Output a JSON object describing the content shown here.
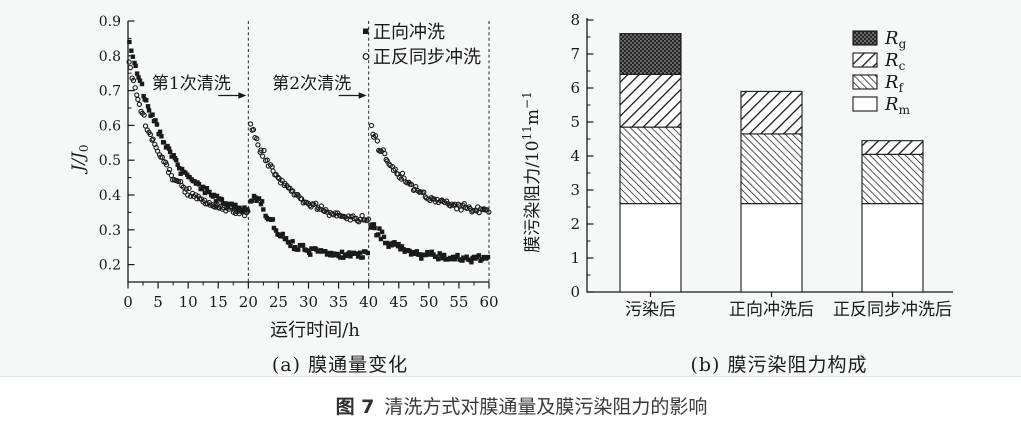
{
  "figure": {
    "caption_prefix": "图 7",
    "caption_text": "清洗方式对膜通量及膜污染阻力的影响"
  },
  "colors": {
    "background": "#f6f7f7",
    "page": "#ffffff",
    "ink": "#1a1a1a",
    "divider": "#dfe6e3"
  },
  "chart_data": [
    {
      "id": "flux",
      "type": "scatter",
      "title": "(a) 膜通量变化",
      "xlabel": "运行时间/h",
      "ylabel": {
        "main": "J/J",
        "sub": "0"
      },
      "xlim": [
        0,
        60
      ],
      "ylim": [
        0.15,
        0.9
      ],
      "xticks": [
        0,
        5,
        10,
        15,
        20,
        25,
        30,
        35,
        40,
        45,
        50,
        55,
        60
      ],
      "x_minor_step": 2.5,
      "yticks": [
        "0.2",
        "0.3",
        "0.4",
        "0.5",
        "0.6",
        "0.7",
        "0.8",
        "0.9"
      ],
      "y_minor_step": 0.05,
      "grid": false,
      "cleaning_boundaries_h": [
        20,
        40,
        60
      ],
      "annotations": [
        {
          "text": "第1次清洗",
          "arrow_to_x": 20
        },
        {
          "text": "第2次清洗",
          "arrow_to_x": 40
        }
      ],
      "legend_position": "top-right",
      "series": [
        {
          "name": "正向冲洗",
          "marker": "square",
          "key_values": [
            [
              0,
              0.84
            ],
            [
              5,
              0.59
            ],
            [
              10,
              0.45
            ],
            [
              15,
              0.39
            ],
            [
              20,
              0.35
            ],
            [
              21,
              0.39
            ],
            [
              25,
              0.29
            ],
            [
              30,
              0.24
            ],
            [
              40,
              0.22
            ],
            [
              41,
              0.33
            ],
            [
              45,
              0.25
            ],
            [
              50,
              0.23
            ],
            [
              60,
              0.21
            ]
          ],
          "segments": [
            {
              "t_range": [
                0.3,
                20
              ],
              "t0": 0,
              "base": 0.33,
              "amp": 0.53,
              "tau": 6.8
            },
            {
              "t_range": [
                20.4,
                21.8
              ],
              "flat": 0.385
            },
            {
              "t_range": [
                21.8,
                40
              ],
              "t0": 21.8,
              "base": 0.225,
              "amp": 0.165,
              "tau": 3.5
            },
            {
              "t_range": [
                40.3,
                60
              ],
              "t0": 40,
              "base": 0.215,
              "amp": 0.115,
              "tau": 4.0
            }
          ]
        },
        {
          "name": "正反同步冲洗",
          "marker": "circle",
          "key_values": [
            [
              0,
              0.78
            ],
            [
              5,
              0.52
            ],
            [
              10,
              0.41
            ],
            [
              15,
              0.37
            ],
            [
              20,
              0.35
            ],
            [
              21,
              0.59
            ],
            [
              25,
              0.45
            ],
            [
              30,
              0.38
            ],
            [
              35,
              0.35
            ],
            [
              40,
              0.33
            ],
            [
              41,
              0.57
            ],
            [
              45,
              0.46
            ],
            [
              50,
              0.39
            ],
            [
              55,
              0.37
            ],
            [
              60,
              0.35
            ]
          ],
          "segments": [
            {
              "t_range": [
                0.2,
                20
              ],
              "t0": 0,
              "base": 0.335,
              "amp": 0.46,
              "tau": 5.6
            },
            {
              "t_range": [
                20.4,
                40
              ],
              "t0": 20,
              "base": 0.32,
              "amp": 0.3,
              "tau": 6.0
            },
            {
              "t_range": [
                40.4,
                60
              ],
              "t0": 40,
              "base": 0.34,
              "amp": 0.26,
              "tau": 6.5
            }
          ]
        }
      ]
    },
    {
      "id": "resistance",
      "type": "stacked-bar",
      "title": "(b) 膜污染阻力构成",
      "ylabel_parts": [
        {
          "t": "膜污染阻力/10"
        },
        {
          "t": "11",
          "s": "sup"
        },
        {
          "t": "m"
        },
        {
          "t": "−1",
          "s": "sup"
        }
      ],
      "ylim": [
        0,
        8
      ],
      "yticks": [
        0,
        1,
        2,
        3,
        4,
        5,
        6,
        7,
        8
      ],
      "y_minor_step": 0.5,
      "categories": [
        "污染后",
        "正向冲洗后",
        "正反同步冲洗后"
      ],
      "totals": [
        7.6,
        5.9,
        4.45
      ],
      "series": [
        {
          "name": "Rm",
          "symbol": "R",
          "sub": "m",
          "pattern": "blank",
          "values": [
            2.6,
            2.6,
            2.6
          ]
        },
        {
          "name": "Rf",
          "symbol": "R",
          "sub": "f",
          "pattern": "hatch-fwd",
          "values": [
            2.25,
            2.05,
            1.45
          ]
        },
        {
          "name": "Rc",
          "symbol": "R",
          "sub": "c",
          "pattern": "hatch-back",
          "values": [
            1.55,
            1.25,
            0.4
          ]
        },
        {
          "name": "Rg",
          "symbol": "R",
          "sub": "g",
          "pattern": "dots-dark",
          "values": [
            1.2,
            0,
            0
          ]
        }
      ],
      "legend_order": [
        "Rg",
        "Rc",
        "Rf",
        "Rm"
      ],
      "legend_position": "top-right"
    }
  ]
}
